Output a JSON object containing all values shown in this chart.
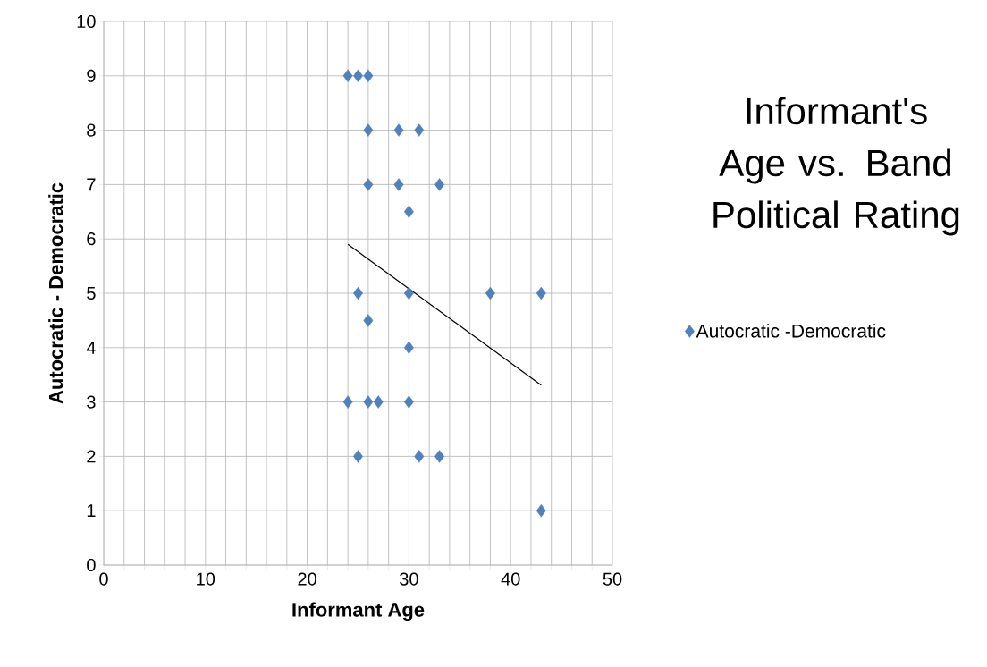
{
  "chart_data": {
    "type": "scatter",
    "title": "Informant's Age vs. Band Political Rating",
    "xlabel": "Informant Age",
    "ylabel": "Autocratic - Democratic",
    "series": [
      {
        "name": "Autocratic -Democratic",
        "color": "#4f81bd",
        "x": [
          24,
          25,
          26,
          26,
          29,
          31,
          26,
          29,
          33,
          30,
          25,
          30,
          38,
          43,
          26,
          30,
          24,
          26,
          27,
          30,
          25,
          31,
          33,
          43
        ],
        "values": [
          9,
          9,
          9,
          8,
          8,
          8,
          7,
          7,
          7,
          6.5,
          5,
          5,
          5,
          5,
          4.5,
          4,
          3,
          3,
          3,
          3,
          2,
          2,
          2,
          1
        ]
      },
      {
        "type": "line",
        "color": "#000000",
        "marker": "none",
        "x": [
          24,
          43
        ],
        "values": [
          5.9,
          3.31
        ]
      }
    ],
    "xlim": [
      0,
      50
    ],
    "ylim": [
      0,
      10
    ],
    "xticks": [
      0,
      {
        "value": 2,
        "label": null
      },
      {
        "value": 4,
        "label": null
      },
      {
        "value": 6,
        "label": null
      },
      {
        "value": 8,
        "label": null
      },
      10,
      {
        "value": 12,
        "label": null
      },
      {
        "value": 14,
        "label": null
      },
      {
        "value": 16,
        "label": null
      },
      {
        "value": 18,
        "label": null
      },
      20,
      {
        "value": 22,
        "label": null
      },
      {
        "value": 24,
        "label": null
      },
      {
        "value": 26,
        "label": null
      },
      {
        "value": 28,
        "label": null
      },
      30,
      {
        "value": 32,
        "label": null
      },
      {
        "value": 34,
        "label": null
      },
      {
        "value": 36,
        "label": null
      },
      {
        "value": 38,
        "label": null
      },
      40,
      {
        "value": 42,
        "label": null
      },
      {
        "value": 44,
        "label": null
      },
      {
        "value": 46,
        "label": null
      },
      {
        "value": 48,
        "label": null
      },
      50
    ],
    "yticks": [
      0,
      1,
      2,
      3,
      4,
      5,
      6,
      7,
      8,
      9,
      10
    ],
    "grid": true,
    "legend": "right",
    "marker": "diamond"
  }
}
